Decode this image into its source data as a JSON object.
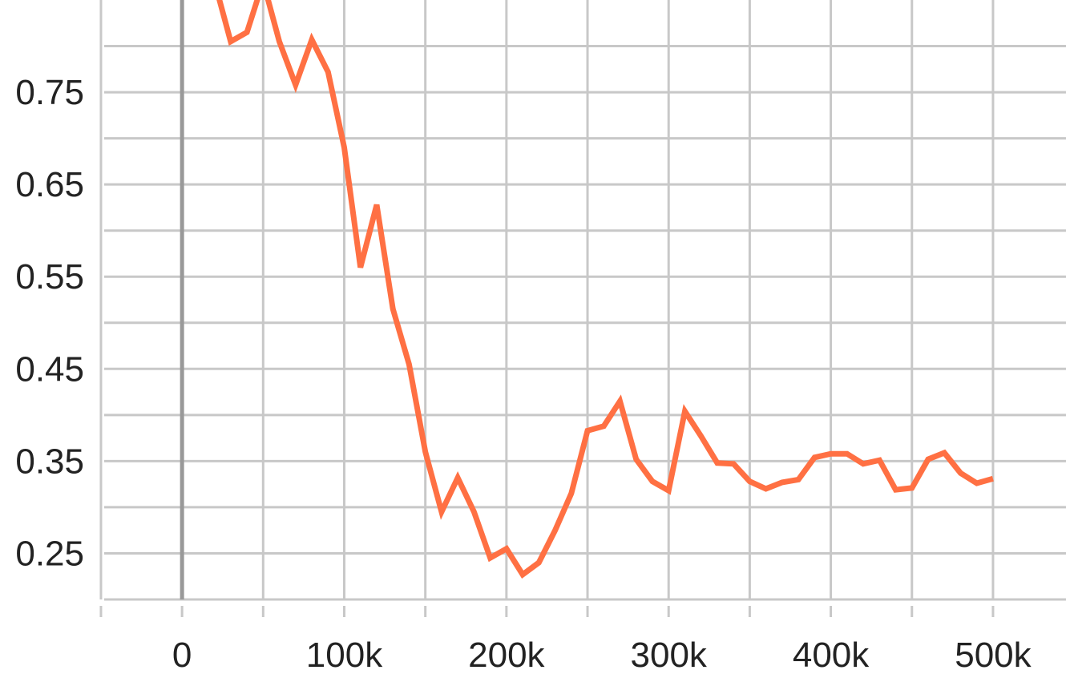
{
  "chart_data": {
    "type": "line",
    "title": "",
    "xlabel": "",
    "ylabel": "",
    "xlim": [
      -48000,
      545000
    ],
    "ylim": [
      0.2,
      0.85
    ],
    "grid": true,
    "x_ticks": [
      {
        "value": 0,
        "label": "0"
      },
      {
        "value": 100000,
        "label": "100k"
      },
      {
        "value": 200000,
        "label": "200k"
      },
      {
        "value": 300000,
        "label": "300k"
      },
      {
        "value": 400000,
        "label": "400k"
      },
      {
        "value": 500000,
        "label": "500k"
      }
    ],
    "x_minor_gridlines": [
      -50000,
      50000,
      150000,
      250000,
      350000,
      450000
    ],
    "y_ticks": [
      {
        "value": 0.25,
        "label": "0.25"
      },
      {
        "value": 0.35,
        "label": "0.35"
      },
      {
        "value": 0.45,
        "label": "0.45"
      },
      {
        "value": 0.55,
        "label": "0.55"
      },
      {
        "value": 0.65,
        "label": "0.65"
      },
      {
        "value": 0.75,
        "label": "0.75"
      }
    ],
    "y_minor_gridlines": [
      0.2,
      0.3,
      0.4,
      0.5,
      0.6,
      0.7,
      0.8
    ],
    "series": [
      {
        "color": "#ff7043",
        "x": [
          20000,
          30000,
          40000,
          50000,
          60000,
          70000,
          80000,
          90000,
          100000,
          110000,
          120000,
          130000,
          140000,
          150000,
          160000,
          170000,
          180000,
          190000,
          200000,
          210000,
          220000,
          230000,
          240000,
          250000,
          260000,
          270000,
          280000,
          290000,
          300000,
          310000,
          320000,
          330000,
          340000,
          350000,
          360000,
          370000,
          380000,
          390000,
          400000,
          410000,
          420000,
          430000,
          440000,
          450000,
          460000,
          470000,
          480000,
          490000,
          500000
        ],
        "y": [
          0.87,
          0.805,
          0.815,
          0.87,
          0.805,
          0.758,
          0.807,
          0.772,
          0.69,
          0.56,
          0.628,
          0.515,
          0.455,
          0.36,
          0.295,
          0.332,
          0.295,
          0.245,
          0.255,
          0.227,
          0.24,
          0.275,
          0.315,
          0.383,
          0.388,
          0.415,
          0.352,
          0.328,
          0.318,
          0.404,
          0.377,
          0.348,
          0.347,
          0.328,
          0.32,
          0.327,
          0.33,
          0.354,
          0.358,
          0.358,
          0.347,
          0.351,
          0.319,
          0.321,
          0.352,
          0.359,
          0.337,
          0.326,
          0.331
        ]
      }
    ]
  }
}
